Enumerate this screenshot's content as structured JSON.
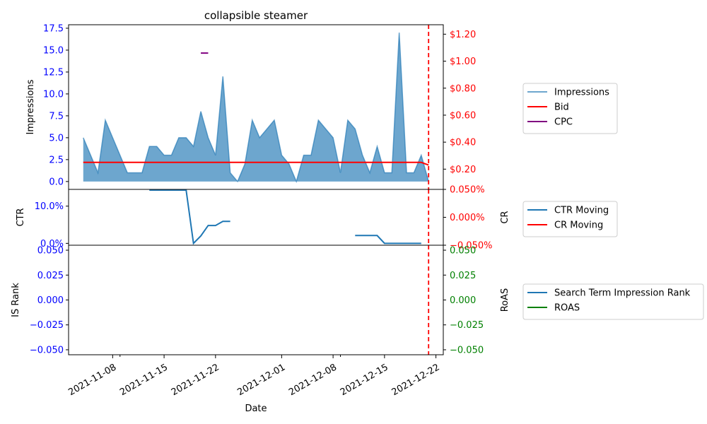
{
  "chart_data": {
    "type": "line",
    "title": "collapsible steamer",
    "xlabel": "Date",
    "x_ticks": [
      "2021-11-08",
      "2021-11-15",
      "2021-11-22",
      "2021-12-01",
      "2021-12-08",
      "2021-12-15",
      "2021-12-22"
    ],
    "vline_date": "2021-12-21",
    "colors": {
      "impressions": "#1f77b4",
      "bid": "#ff0000",
      "cpc": "#800080",
      "ctr": "#1f77b4",
      "cr": "#ff0000",
      "rank": "#1f77b4",
      "roas": "#008000",
      "left_axis": "#0000ff",
      "right_axis_top": "#ff0000",
      "right_axis_bottom": "#008000"
    },
    "panels": [
      {
        "ylabel": "Impressions",
        "ylabel_right": "",
        "y_ticks": [
          "0.0",
          "2.5",
          "5.0",
          "7.5",
          "10.0",
          "12.5",
          "15.0",
          "17.5"
        ],
        "y_ticks_right": [
          "$0.20",
          "$0.40",
          "$0.60",
          "$0.80",
          "$1.00",
          "$1.20"
        ],
        "ylim": [
          -0.9,
          17.9
        ],
        "ylim_right": [
          0.05,
          1.27
        ],
        "legend": [
          "Impressions",
          "Bid",
          "CPC"
        ],
        "series": [
          {
            "name": "Impressions",
            "type": "area",
            "x": [
              "2021-11-04",
              "2021-11-05",
              "2021-11-06",
              "2021-11-07",
              "2021-11-08",
              "2021-11-09",
              "2021-11-10",
              "2021-11-11",
              "2021-11-12",
              "2021-11-13",
              "2021-11-14",
              "2021-11-15",
              "2021-11-16",
              "2021-11-17",
              "2021-11-18",
              "2021-11-19",
              "2021-11-20",
              "2021-11-21",
              "2021-11-22",
              "2021-11-23",
              "2021-11-24",
              "2021-11-25",
              "2021-11-26",
              "2021-11-27",
              "2021-11-28",
              "2021-11-29",
              "2021-11-30",
              "2021-12-01",
              "2021-12-02",
              "2021-12-03",
              "2021-12-04",
              "2021-12-05",
              "2021-12-06",
              "2021-12-07",
              "2021-12-08",
              "2021-12-09",
              "2021-12-10",
              "2021-12-11",
              "2021-12-12",
              "2021-12-13",
              "2021-12-14",
              "2021-12-15",
              "2021-12-16",
              "2021-12-17",
              "2021-12-18",
              "2021-12-19",
              "2021-12-20",
              "2021-12-21"
            ],
            "values": [
              5,
              3,
              1,
              7,
              5,
              3,
              1,
              1,
              1,
              4,
              4,
              3,
              3,
              5,
              5,
              4,
              8,
              5,
              3,
              12,
              1,
              0,
              2,
              7,
              5,
              6,
              7,
              3,
              2,
              0,
              3,
              3,
              7,
              6,
              5,
              1,
              7,
              6,
              3,
              1,
              4,
              1,
              1,
              17,
              1,
              1,
              3,
              0
            ]
          },
          {
            "name": "Bid",
            "type": "line",
            "axis": "right",
            "x": [
              "2021-11-04",
              "2021-12-20",
              "2021-12-21"
            ],
            "values": [
              0.25,
              0.25,
              0.23
            ]
          },
          {
            "name": "CPC",
            "type": "line",
            "axis": "right",
            "x": [
              "2021-11-20",
              "2021-11-21"
            ],
            "values": [
              1.06,
              1.06
            ]
          }
        ]
      },
      {
        "ylabel": "CTR",
        "ylabel_right": "CR",
        "y_ticks": [
          "0.0%",
          "10.0%"
        ],
        "y_ticks_right": [
          "−0.050%",
          "0.000%",
          "0.050%"
        ],
        "ylim": [
          -0.5,
          14.5
        ],
        "ylim_right": [
          -0.05,
          0.05
        ],
        "legend": [
          "CTR Moving",
          "CR Moving"
        ],
        "series": [
          {
            "name": "CTR Moving",
            "type": "line",
            "segments": [
              {
                "x": [
                  "2021-11-13",
                  "2021-11-14",
                  "2021-11-15",
                  "2021-11-16",
                  "2021-11-17",
                  "2021-11-18",
                  "2021-11-19",
                  "2021-11-20",
                  "2021-11-21",
                  "2021-11-22",
                  "2021-11-23",
                  "2021-11-24"
                ],
                "values": [
                  14.3,
                  14.3,
                  14.3,
                  14.3,
                  14.3,
                  14.3,
                  0,
                  2,
                  4.8,
                  4.8,
                  5.9,
                  5.9
                ]
              },
              {
                "x": [
                  "2021-12-11",
                  "2021-12-12",
                  "2021-12-13",
                  "2021-12-14",
                  "2021-12-15",
                  "2021-12-16",
                  "2021-12-17",
                  "2021-12-18",
                  "2021-12-19",
                  "2021-12-20"
                ],
                "values": [
                  2.1,
                  2.1,
                  2.1,
                  2.1,
                  0,
                  0,
                  0,
                  0,
                  0,
                  0
                ]
              }
            ]
          },
          {
            "name": "CR Moving",
            "type": "line",
            "axis": "right",
            "values": []
          }
        ]
      },
      {
        "ylabel": "IS Rank",
        "ylabel_right": "RoAS",
        "y_ticks": [
          "−0.050",
          "−0.025",
          "0.000",
          "0.025",
          "0.050"
        ],
        "y_ticks_right": [
          "−0.050",
          "−0.025",
          "0.000",
          "0.025",
          "0.050"
        ],
        "ylim": [
          -0.055,
          0.055
        ],
        "ylim_right": [
          -0.055,
          0.055
        ],
        "legend": [
          "Search Term Impression Rank",
          "ROAS"
        ],
        "series": [
          {
            "name": "Search Term Impression Rank",
            "type": "line",
            "values": []
          },
          {
            "name": "ROAS",
            "type": "line",
            "axis": "right",
            "values": []
          }
        ]
      }
    ]
  }
}
